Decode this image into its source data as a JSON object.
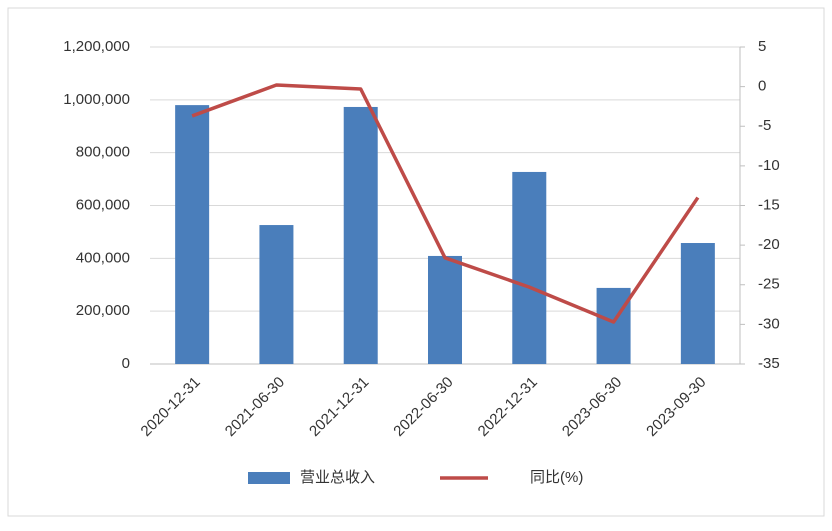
{
  "chart_data": {
    "type": "bar_line",
    "categories": [
      "2020-12-31",
      "2021-06-30",
      "2021-12-31",
      "2022-06-30",
      "2022-12-31",
      "2023-06-30",
      "2023-09-30"
    ],
    "series": [
      {
        "name": "营业总收入",
        "type": "bar",
        "color": "#4a7ebb",
        "values": [
          980000,
          526000,
          973000,
          409000,
          727000,
          288000,
          458000
        ]
      },
      {
        "name": "同比(%)",
        "type": "line",
        "axis": "y2",
        "color": "#be4b48",
        "values": [
          -3.7,
          0.2,
          -0.3,
          -21.6,
          -25.3,
          -29.7,
          -14.0
        ]
      }
    ],
    "ylim": [
      0,
      1200000
    ],
    "yticks": [
      0,
      {
        "value": 200000,
        "label": "200,000"
      },
      {
        "value": 400000,
        "label": "400,000"
      },
      {
        "value": 600000,
        "label": "600,000"
      },
      {
        "value": 800000,
        "label": "800,000"
      },
      {
        "value": 1000000,
        "label": "1,000,000"
      },
      {
        "value": 1200000,
        "label": "1,200,000"
      }
    ],
    "y2lim": [
      -35,
      5
    ],
    "y2ticks": [
      5,
      0,
      -5,
      -10,
      -15,
      -20,
      -25,
      -30,
      -35
    ],
    "grid": true,
    "legend": "bottom"
  }
}
